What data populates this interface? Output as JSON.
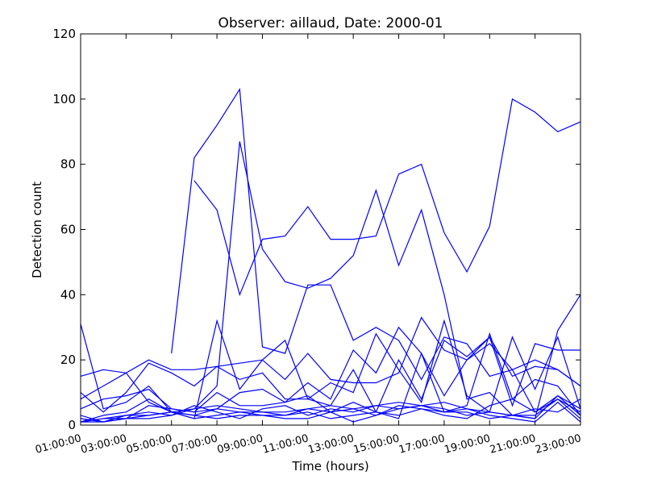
{
  "chart_data": {
    "type": "line",
    "title": "Observer: aillaud, Date: 2000-01",
    "xlabel": "Time (hours)",
    "ylabel": "Detection count",
    "color": "#0000ff",
    "xlim": [
      1,
      23
    ],
    "ylim": [
      0,
      120
    ],
    "x": [
      1,
      2,
      3,
      4,
      5,
      6,
      7,
      8,
      9,
      10,
      11,
      12,
      13,
      14,
      15,
      16,
      17,
      18,
      19,
      20,
      21,
      22,
      23
    ],
    "xticks": [
      {
        "value": 1,
        "label": "01:00:00"
      },
      {
        "value": 3,
        "label": "03:00:00"
      },
      {
        "value": 5,
        "label": "05:00:00"
      },
      {
        "value": 7,
        "label": "07:00:00"
      },
      {
        "value": 9,
        "label": "09:00:00"
      },
      {
        "value": 11,
        "label": "11:00:00"
      },
      {
        "value": 13,
        "label": "13:00:00"
      },
      {
        "value": 15,
        "label": "15:00:00"
      },
      {
        "value": 17,
        "label": "17:00:00"
      },
      {
        "value": 19,
        "label": "19:00:00"
      },
      {
        "value": 21,
        "label": "21:00:00"
      },
      {
        "value": 23,
        "label": "23:00:00"
      }
    ],
    "yticks": [
      0,
      20,
      40,
      60,
      80,
      100,
      120
    ],
    "grid": false,
    "series": [
      {
        "values": [
          null,
          null,
          null,
          null,
          22,
          82,
          92,
          103,
          24,
          22,
          43,
          43,
          26,
          30,
          26,
          14,
          27,
          25,
          15,
          17,
          20,
          17,
          12
        ]
      },
      {
        "values": [
          null,
          null,
          null,
          null,
          null,
          75,
          66,
          40,
          57,
          58,
          67,
          57,
          57,
          58,
          77,
          80,
          59,
          47,
          61,
          100,
          96,
          90,
          93
        ]
      },
      {
        "values": [
          1,
          2,
          3,
          3,
          4,
          5,
          12,
          87,
          54,
          44,
          42,
          45,
          52,
          72,
          49,
          66,
          40,
          8,
          10,
          3,
          2,
          29,
          40
        ]
      },
      {
        "values": [
          31,
          5,
          7,
          12,
          4,
          2,
          32,
          11,
          20,
          26,
          8,
          6,
          17,
          4,
          2,
          22,
          4,
          6,
          28,
          8,
          14,
          12,
          3
        ]
      },
      {
        "values": [
          15,
          17,
          16,
          20,
          17,
          17,
          18,
          19,
          20,
          14,
          22,
          14,
          13,
          13,
          16,
          33,
          23,
          20,
          27,
          15,
          18,
          17,
          12
        ]
      },
      {
        "values": [
          10,
          4,
          10,
          19,
          16,
          12,
          18,
          14,
          16,
          8,
          8,
          13,
          10,
          28,
          17,
          7,
          32,
          9,
          4,
          27,
          11,
          27,
          5
        ]
      },
      {
        "values": [
          8,
          12,
          16,
          7,
          4,
          3,
          5,
          10,
          11,
          7,
          13,
          8,
          23,
          16,
          30,
          22,
          9,
          20,
          25,
          17,
          4,
          9,
          5
        ]
      },
      {
        "values": [
          5,
          8,
          9,
          11,
          5,
          4,
          10,
          6,
          6,
          7,
          9,
          4,
          7,
          4,
          20,
          8,
          26,
          21,
          27,
          6,
          25,
          23,
          23
        ]
      },
      {
        "values": [
          3,
          1,
          2,
          6,
          5,
          4,
          5,
          4,
          4,
          3,
          5,
          4,
          5,
          3,
          5,
          6,
          5,
          3,
          4,
          3,
          2,
          9,
          3
        ]
      },
      {
        "values": [
          1,
          2,
          2,
          3,
          4,
          3,
          2,
          3,
          3,
          3,
          4,
          2,
          3,
          4,
          3,
          5,
          4,
          4,
          2,
          3,
          3,
          8,
          4
        ]
      },
      {
        "values": [
          2,
          1,
          3,
          4,
          3,
          6,
          4,
          2,
          5,
          6,
          3,
          5,
          4,
          6,
          5,
          6,
          7,
          5,
          3,
          2,
          1,
          7,
          1
        ]
      },
      {
        "values": [
          1,
          1,
          2,
          2,
          3,
          5,
          6,
          5,
          4,
          4,
          5,
          6,
          5,
          6,
          7,
          6,
          4,
          5,
          4,
          3,
          5,
          4,
          8
        ]
      },
      {
        "values": [
          1,
          3,
          4,
          8,
          4,
          2,
          3,
          4,
          3,
          2,
          2,
          4,
          1,
          3,
          6,
          5,
          3,
          2,
          6,
          8,
          4,
          8,
          2
        ]
      }
    ]
  }
}
